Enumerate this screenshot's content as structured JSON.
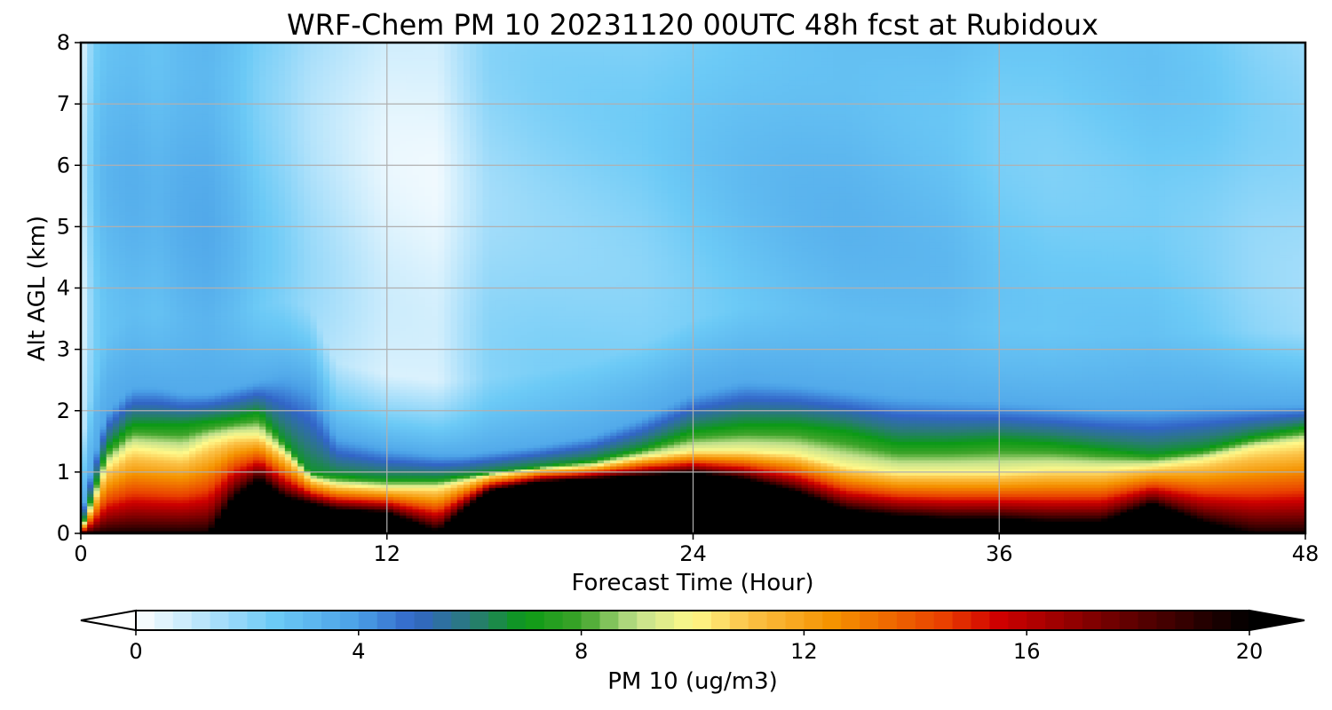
{
  "chart_data": {
    "type": "heatmap",
    "title": "WRF-Chem PM 10  20231120 00UTC 48h fcst at Rubidoux",
    "xlabel": "Forecast Time (Hour)",
    "ylabel": "Alt AGL (km)",
    "xlim": [
      0,
      48
    ],
    "ylim": [
      0,
      8
    ],
    "x_ticks": [
      "0",
      "12",
      "24",
      "36",
      "48"
    ],
    "y_ticks": [
      "0",
      "1",
      "2",
      "3",
      "4",
      "5",
      "6",
      "7",
      "8"
    ],
    "grid": true,
    "colorbar": {
      "label": "PM 10  (ug/m3)",
      "range": [
        0,
        20
      ],
      "ticks": [
        "0",
        "4",
        "8",
        "12",
        "16",
        "20"
      ],
      "extend": "both",
      "stops": [
        {
          "v": 0,
          "color": "#ffffff"
        },
        {
          "v": 1.5,
          "color": "#a6defa"
        },
        {
          "v": 2.5,
          "color": "#6ccaf6"
        },
        {
          "v": 4,
          "color": "#4a9fe6"
        },
        {
          "v": 5,
          "color": "#3265c8"
        },
        {
          "v": 6,
          "color": "#2a7a7a"
        },
        {
          "v": 7,
          "color": "#0b9a15"
        },
        {
          "v": 8,
          "color": "#3ea42a"
        },
        {
          "v": 9,
          "color": "#c3e18c"
        },
        {
          "v": 10,
          "color": "#fff98a"
        },
        {
          "v": 11,
          "color": "#fbc247"
        },
        {
          "v": 12.5,
          "color": "#f59300"
        },
        {
          "v": 14.5,
          "color": "#e94000"
        },
        {
          "v": 15.5,
          "color": "#cf0000"
        },
        {
          "v": 18,
          "color": "#5a0000"
        },
        {
          "v": 20,
          "color": "#000000"
        }
      ]
    },
    "profile_hours": [
      0,
      0.5,
      1,
      2,
      3,
      4,
      5,
      6,
      7,
      8,
      9,
      10,
      12,
      14,
      15,
      16,
      18,
      20,
      22,
      24,
      26,
      28,
      30,
      32,
      34,
      36,
      38,
      40,
      42,
      44,
      46,
      48
    ],
    "black_top_km": [
      0,
      0,
      0,
      0,
      0,
      0,
      0,
      0.6,
      0.9,
      0.6,
      0.5,
      0.4,
      0.35,
      0.05,
      0.4,
      0.7,
      0.85,
      0.9,
      0.95,
      1.0,
      0.9,
      0.7,
      0.4,
      0.3,
      0.25,
      0.25,
      0.2,
      0.2,
      0.5,
      0.2,
      0,
      0
    ],
    "core_top_km": [
      0.05,
      0.5,
      1.1,
      1.4,
      1.35,
      1.3,
      1.5,
      1.6,
      1.6,
      1.3,
      0.9,
      0.8,
      0.75,
      0.75,
      0.85,
      0.95,
      1.05,
      1.1,
      1.25,
      1.35,
      1.35,
      1.3,
      1.1,
      1.0,
      1.0,
      1.0,
      1.05,
      1.05,
      1.1,
      1.2,
      1.4,
      1.5
    ],
    "green_top_km": [
      0.1,
      0.7,
      1.4,
      1.8,
      1.8,
      1.8,
      1.85,
      1.9,
      2.0,
      1.5,
      1.0,
      0.95,
      0.9,
      0.9,
      0.95,
      1.0,
      1.1,
      1.2,
      1.4,
      1.7,
      1.8,
      1.8,
      1.7,
      1.5,
      1.5,
      1.55,
      1.5,
      1.4,
      1.3,
      1.4,
      1.6,
      1.75
    ],
    "blue_top_km": [
      0.3,
      1.2,
      2.0,
      2.4,
      2.4,
      2.3,
      2.3,
      2.4,
      2.5,
      2.6,
      2.5,
      1.6,
      1.4,
      1.3,
      1.3,
      1.35,
      1.45,
      1.6,
      1.9,
      2.3,
      2.5,
      2.45,
      2.35,
      2.25,
      2.2,
      2.15,
      2.1,
      2.05,
      2.05,
      2.1,
      2.1,
      2.1
    ],
    "upper_level_ugm3": [
      0.5,
      2.5,
      3.0,
      3.2,
      3.0,
      3.3,
      3.4,
      3.0,
      2.4,
      2.0,
      1.5,
      1.2,
      0.6,
      0.5,
      1.2,
      1.8,
      2.0,
      2.1,
      2.2,
      2.5,
      2.8,
      3.0,
      3.1,
      3.0,
      2.9,
      2.5,
      2.4,
      2.5,
      2.6,
      2.4,
      2.0,
      1.8
    ]
  }
}
